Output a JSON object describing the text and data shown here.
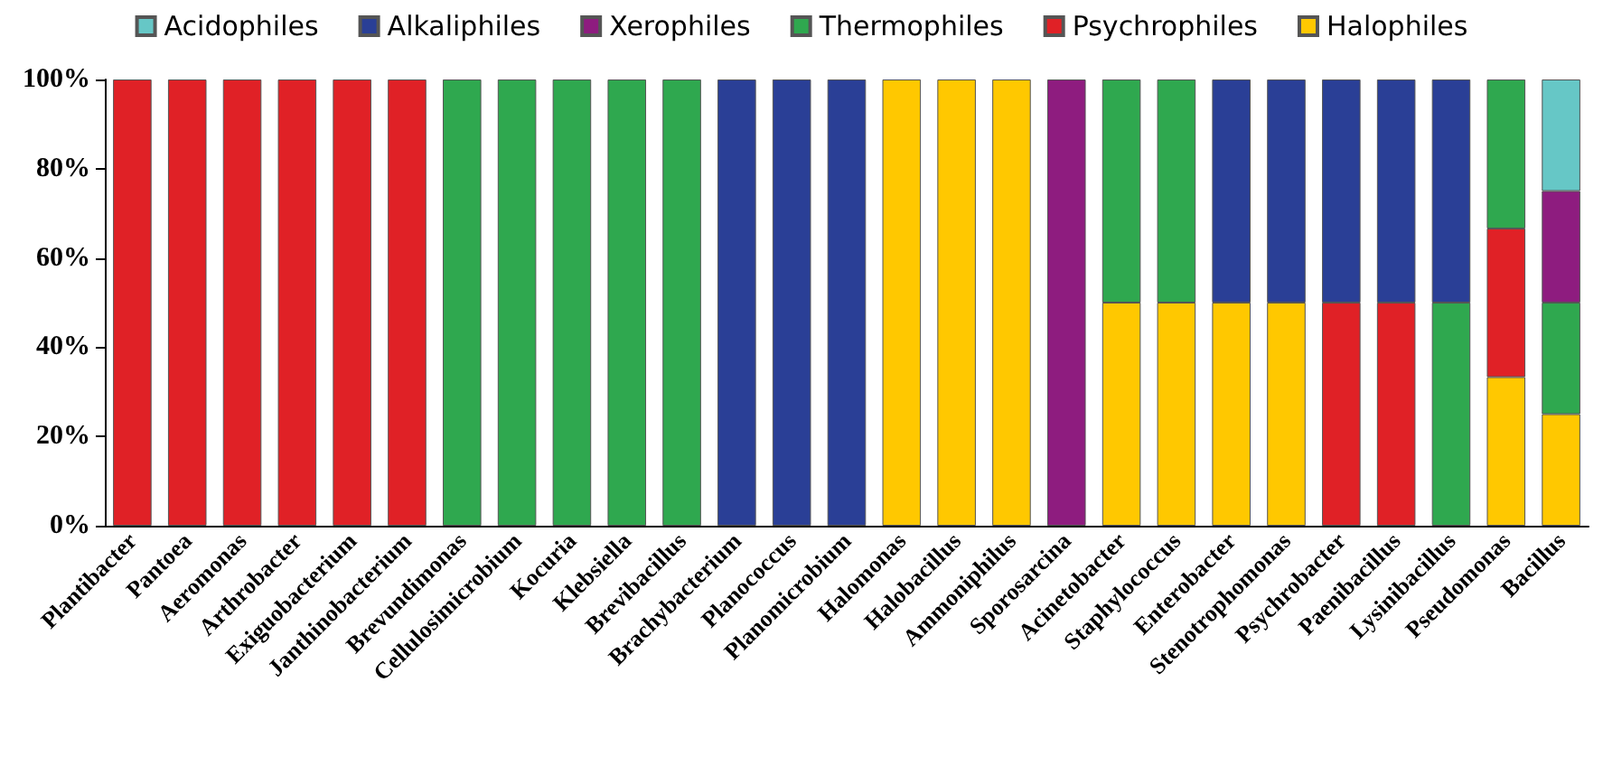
{
  "chart_data": {
    "type": "bar",
    "stacked": true,
    "legend": "top",
    "grid": false,
    "categories": [
      "Plantibacter",
      "Pantoea",
      "Aeromonas",
      "Arthrobacter",
      "Exiguobacterium",
      "Janthinobacterium",
      "Brevundimonas",
      "Cellulosimicrobium",
      "Kocuria",
      "Klebsiella",
      "Brevibacillus",
      "Brachybacterium",
      "Planococcus",
      "Planomicrobium",
      "Halomonas",
      "Halobacillus",
      "Ammoniphilus",
      "Sporosarcina",
      "Acinetobacter",
      "Staphylococcus",
      "Enterobacter",
      "Stenotrophomonas",
      "Psychrobacter",
      "Paenibacillus",
      "Lysinibacillus",
      "Pseudomonas",
      "Bacillus"
    ],
    "ylim": [
      0,
      100
    ],
    "yticks": [
      {
        "value": 0,
        "label": "0%"
      },
      {
        "value": 20,
        "label": "20%"
      },
      {
        "value": 40,
        "label": "40%"
      },
      {
        "value": 60,
        "label": "60%"
      },
      {
        "value": 80,
        "label": "80%"
      },
      {
        "value": 100,
        "label": "100%"
      }
    ],
    "series": [
      {
        "name": "Halophiles",
        "color": "#ffc800",
        "values": [
          null,
          null,
          null,
          null,
          null,
          null,
          null,
          null,
          null,
          null,
          null,
          null,
          null,
          null,
          100,
          100,
          100,
          null,
          50,
          50,
          50,
          50,
          null,
          null,
          null,
          33.3,
          25
        ]
      },
      {
        "name": "Psychrophiles",
        "color": "#e02126",
        "values": [
          100,
          100,
          100,
          100,
          100,
          100,
          null,
          null,
          null,
          null,
          null,
          null,
          null,
          null,
          null,
          null,
          null,
          null,
          null,
          null,
          null,
          null,
          50,
          50,
          null,
          33.3,
          null
        ]
      },
      {
        "name": "Thermophiles",
        "color": "#2fa84f",
        "values": [
          null,
          null,
          null,
          null,
          null,
          null,
          100,
          100,
          100,
          100,
          100,
          null,
          null,
          null,
          null,
          null,
          null,
          null,
          50,
          50,
          null,
          null,
          null,
          null,
          50,
          33.4,
          25
        ]
      },
      {
        "name": "Xerophiles",
        "color": "#8e1c7f",
        "values": [
          null,
          null,
          null,
          null,
          null,
          null,
          null,
          null,
          null,
          null,
          null,
          null,
          null,
          null,
          null,
          null,
          null,
          100,
          null,
          null,
          null,
          null,
          null,
          null,
          null,
          null,
          25
        ]
      },
      {
        "name": "Alkaliphiles",
        "color": "#2a3f96",
        "values": [
          null,
          null,
          null,
          null,
          null,
          null,
          null,
          null,
          null,
          null,
          null,
          100,
          100,
          100,
          null,
          null,
          null,
          null,
          null,
          null,
          50,
          50,
          50,
          50,
          50,
          null,
          null
        ]
      },
      {
        "name": "Acidophiles",
        "color": "#66c7c6",
        "values": [
          null,
          null,
          null,
          null,
          null,
          null,
          null,
          null,
          null,
          null,
          null,
          null,
          null,
          null,
          null,
          null,
          null,
          null,
          null,
          null,
          null,
          null,
          null,
          null,
          null,
          null,
          25
        ]
      }
    ]
  }
}
